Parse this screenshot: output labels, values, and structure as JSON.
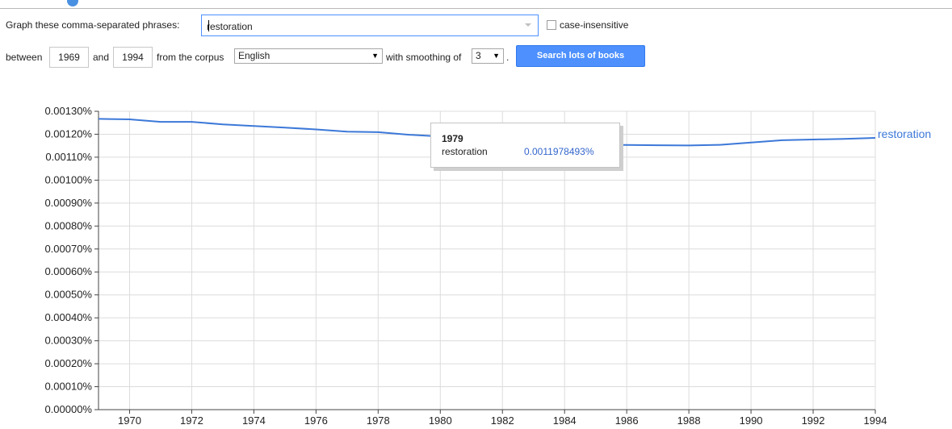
{
  "form": {
    "phrases_label": "Graph these comma-separated phrases:",
    "phrases_value": "restoration",
    "case_label": "case-insensitive",
    "between_label": "between",
    "year_start": "1969",
    "and_label": "and",
    "year_end": "1994",
    "corpus_label": "from the corpus",
    "corpus_value": "English",
    "smoothing_label": "with smoothing of",
    "smoothing_value": "3",
    "period": ".",
    "search_button": "Search lots of books"
  },
  "tooltip": {
    "year": "1979",
    "series": "restoration",
    "value": "0.0011978493%"
  },
  "colors": {
    "line": "#3c78d8",
    "accent": "#4d90fe",
    "grid": "#dcdcdc"
  },
  "chart_data": {
    "type": "line",
    "title": "",
    "xlabel": "",
    "ylabel": "",
    "xlim": [
      1969,
      1994
    ],
    "ylim": [
      0.0,
      0.0013
    ],
    "x_ticks": [
      "1970",
      "1972",
      "1974",
      "1976",
      "1978",
      "1980",
      "1982",
      "1984",
      "1986",
      "1988",
      "1990",
      "1992",
      "1994"
    ],
    "y_ticks": [
      "0.00000%",
      "0.00010%",
      "0.00020%",
      "0.00030%",
      "0.00040%",
      "0.00050%",
      "0.00060%",
      "0.00070%",
      "0.00080%",
      "0.00090%",
      "0.00100%",
      "0.00110%",
      "0.00120%",
      "0.00130%"
    ],
    "grid": true,
    "legend": "end-of-line label",
    "series": [
      {
        "name": "restoration",
        "x": [
          1969,
          1970,
          1971,
          1972,
          1973,
          1974,
          1975,
          1976,
          1977,
          1978,
          1979,
          1980,
          1981,
          1982,
          1983,
          1984,
          1985,
          1986,
          1987,
          1988,
          1989,
          1990,
          1991,
          1992,
          1993,
          1994
        ],
        "y": [
          0.001267,
          0.001265,
          0.001254,
          0.001254,
          0.001243,
          0.001236,
          0.001229,
          0.001221,
          0.001211,
          0.001209,
          0.0011978493,
          0.00119,
          0.00118,
          0.001172,
          0.001165,
          0.001158,
          0.001154,
          0.001153,
          0.001152,
          0.001151,
          0.001154,
          0.001164,
          0.001174,
          0.001177,
          0.00118,
          0.001184
        ]
      }
    ]
  }
}
